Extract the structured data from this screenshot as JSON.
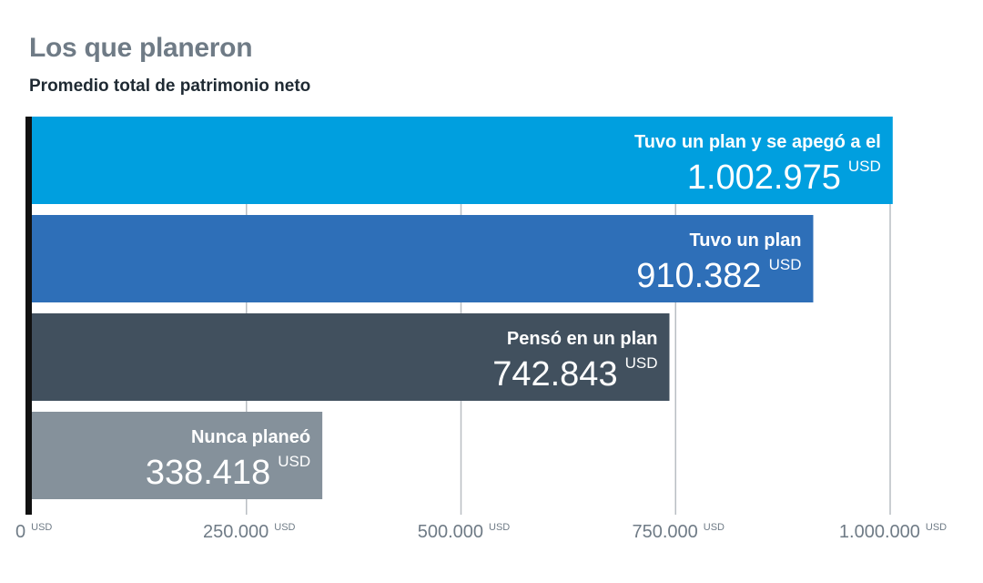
{
  "chart_data": {
    "type": "bar",
    "orientation": "horizontal",
    "title": "Los que planeron",
    "subtitle": "Promedio total de patrimonio neto",
    "categories": [
      "Tuvo un plan y se apegó a el",
      "Tuvo un plan",
      "Pensó en un plan",
      "Nunca planeó"
    ],
    "values": [
      1002975,
      910382,
      742843,
      338418
    ],
    "value_labels": [
      "1.002.975",
      "910.382",
      "742.843",
      "338.418"
    ],
    "unit": "USD",
    "colors": [
      "#009fdf",
      "#2e6fb8",
      "#41505e",
      "#85919b"
    ],
    "xlim": [
      0,
      1000000
    ],
    "x_ticks": [
      {
        "value": 0,
        "label": "0"
      },
      {
        "value": 250000,
        "label": "250.000"
      },
      {
        "value": 500000,
        "label": "500.000"
      },
      {
        "value": 750000,
        "label": "750.000"
      },
      {
        "value": 1000000,
        "label": "1.000.000"
      }
    ],
    "grid": true,
    "grid_color": "#b9bec3",
    "axis_color": "#111111",
    "xlabel": "",
    "ylabel": ""
  }
}
